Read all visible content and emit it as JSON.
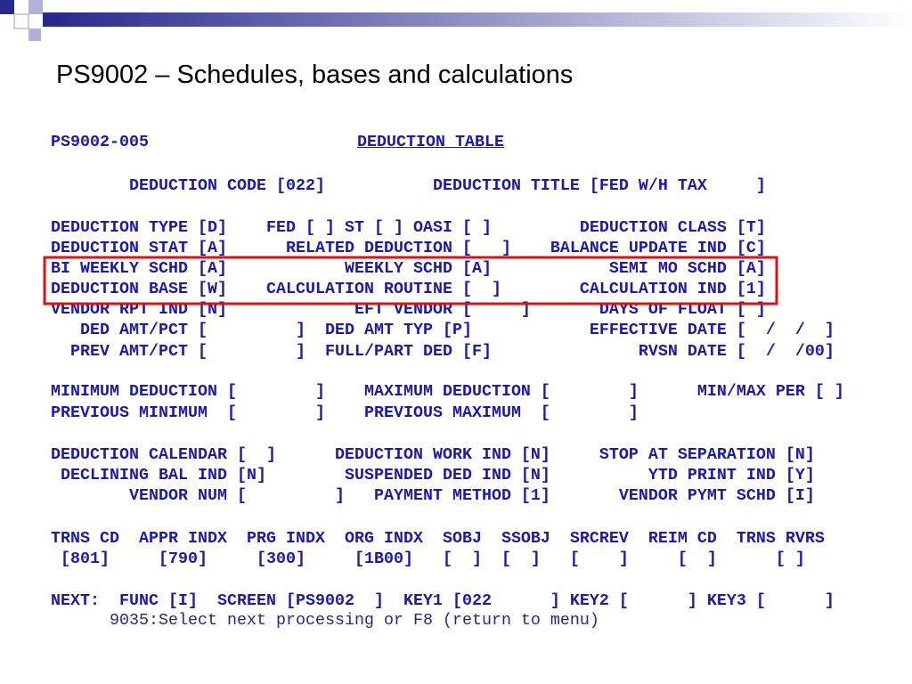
{
  "title": "PS9002 – Schedules, bases and calculations",
  "screen": {
    "header": {
      "id": "PS9002-005",
      "name": "DEDUCTION TABLE"
    },
    "lines": [
      "        DEDUCTION CODE [022]           DEDUCTION TITLE [FED W/H TAX     ]",
      "DEDUCTION TYPE [D]    FED [ ] ST [ ] OASI [ ]         DEDUCTION CLASS [T]",
      "DEDUCTION STAT [A]      RELATED DEDUCTION [   ]    BALANCE UPDATE IND [C]",
      "BI WEEKLY SCHD [A]            WEEKLY SCHD [A]            SEMI MO SCHD [A]",
      "DEDUCTION BASE [W]    CALCULATION ROUTINE [  ]        CALCULATION IND [1]",
      "VENDOR RPT IND [N]             EFT VENDOR [     ]       DAYS OF FLOAT [ ]",
      "   DED AMT/PCT [         ]  DED AMT TYP [P]            EFFECTIVE DATE [  /  /  ]",
      "  PREV AMT/PCT [         ]  FULL/PART DED [F]               RVSN DATE [  /  /00]",
      "MINIMUM DEDUCTION [        ]    MAXIMUM DEDUCTION [        ]      MIN/MAX PER [ ]",
      "PREVIOUS MINIMUM  [        ]    PREVIOUS MAXIMUM  [        ]",
      "DEDUCTION CALENDAR [  ]      DEDUCTION WORK IND [N]     STOP AT SEPARATION [N]",
      " DECLINING BAL IND [N]        SUSPENDED DED IND [N]          YTD PRINT IND [Y]",
      "        VENDOR NUM [         ]   PAYMENT METHOD [1]       VENDOR PYMT SCHD [I]",
      "TRNS CD  APPR INDX  PRG INDX  ORG INDX  SOBJ  SSOBJ  SRCREV  REIM CD  TRNS RVRS",
      " [801]     [790]     [300]     [1B00]   [  ]  [  ]   [    ]     [  ]      [ ]",
      "NEXT:  FUNC [I]  SCREEN [PS9002  ]  KEY1 [022      ] KEY2 [      ] KEY3 [      ]",
      "      9035:Select next processing or F8 (return to menu)"
    ]
  }
}
